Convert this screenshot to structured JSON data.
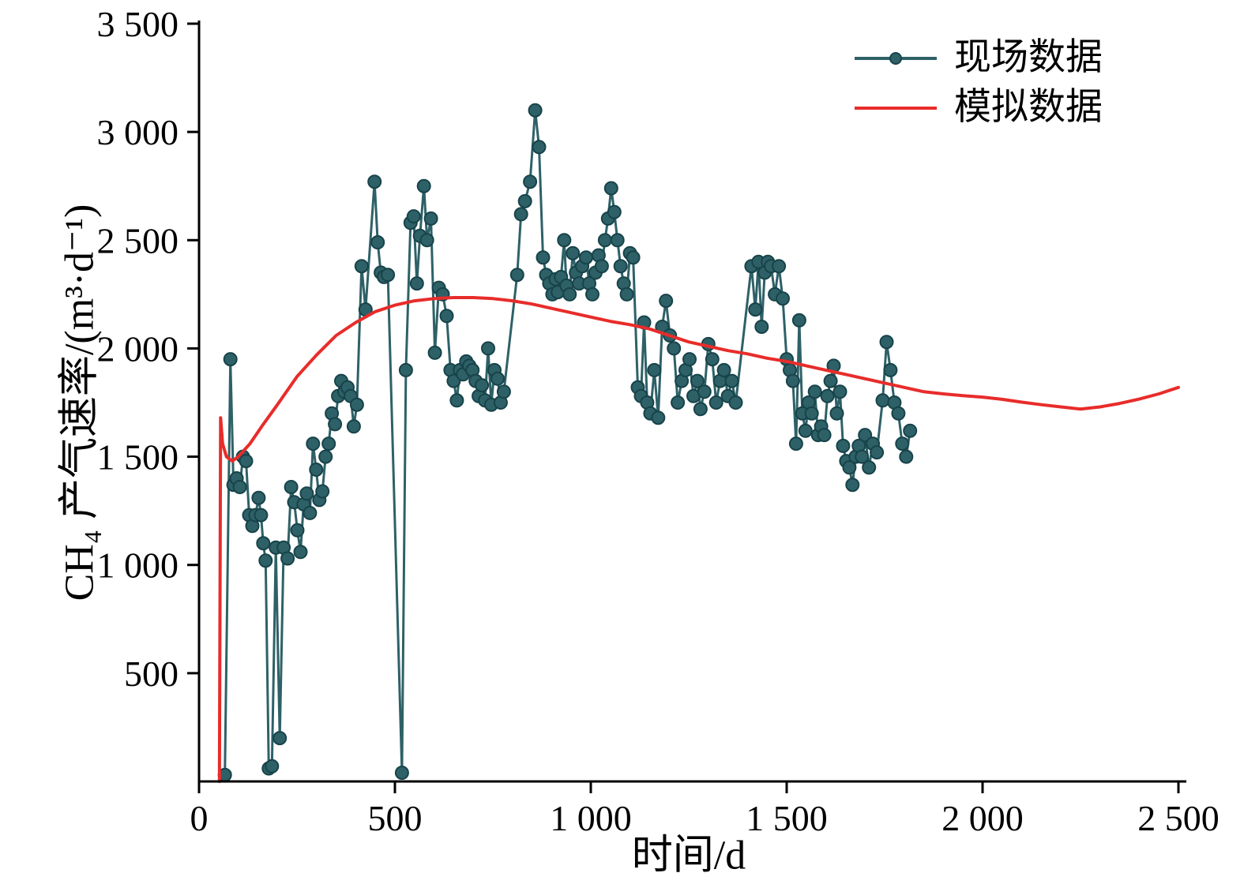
{
  "figure": {
    "background": "#ffffff",
    "axis_color": "#000000",
    "tick_label_font_px": 46
  },
  "legend": {
    "position": "top-right",
    "items": [
      {
        "name": "field",
        "label": "现场数据",
        "marker": "circle-line",
        "color": "#2e6167",
        "marker_edge": "#17434a"
      },
      {
        "name": "simulated",
        "label": "模拟数据",
        "marker": "line",
        "color": "#e82c2a"
      }
    ]
  },
  "chart_data": {
    "type": "line",
    "title": "",
    "xlabel": "时间/d",
    "ylabel": "CH₄ 产气速率/(m³·d⁻¹)",
    "xlim": [
      0,
      2500
    ],
    "ylim": [
      0,
      3500
    ],
    "grid": false,
    "x_ticks": [
      {
        "value": 0,
        "label": "0"
      },
      {
        "value": 500,
        "label": "500"
      },
      {
        "value": 1000,
        "label": "1 000"
      },
      {
        "value": 1500,
        "label": "1 500"
      },
      {
        "value": 2000,
        "label": "2 000"
      },
      {
        "value": 2500,
        "label": "2 500"
      }
    ],
    "y_ticks": [
      {
        "value": 500,
        "label": "500"
      },
      {
        "value": 1000,
        "label": "1 000"
      },
      {
        "value": 1500,
        "label": "1 500"
      },
      {
        "value": 2000,
        "label": "2 000"
      },
      {
        "value": 2500,
        "label": "2 500"
      },
      {
        "value": 3000,
        "label": "3 000"
      },
      {
        "value": 3500,
        "label": "3 500"
      }
    ],
    "series": [
      {
        "name": "现场数据",
        "style": "line+marker",
        "color": "#2e6167",
        "marker_edge": "#17434a",
        "marker_radius": 8,
        "line_width": 3,
        "points": [
          [
            66,
            30
          ],
          [
            80,
            1950
          ],
          [
            88,
            1370
          ],
          [
            96,
            1400
          ],
          [
            104,
            1360
          ],
          [
            112,
            1500
          ],
          [
            120,
            1480
          ],
          [
            128,
            1230
          ],
          [
            136,
            1180
          ],
          [
            144,
            1230
          ],
          [
            152,
            1310
          ],
          [
            158,
            1230
          ],
          [
            164,
            1100
          ],
          [
            170,
            1020
          ],
          [
            178,
            60
          ],
          [
            186,
            70
          ],
          [
            196,
            1080
          ],
          [
            206,
            200
          ],
          [
            216,
            1080
          ],
          [
            226,
            1030
          ],
          [
            235,
            1360
          ],
          [
            243,
            1290
          ],
          [
            251,
            1160
          ],
          [
            259,
            1060
          ],
          [
            267,
            1280
          ],
          [
            275,
            1330
          ],
          [
            283,
            1240
          ],
          [
            291,
            1560
          ],
          [
            299,
            1440
          ],
          [
            307,
            1300
          ],
          [
            315,
            1340
          ],
          [
            323,
            1500
          ],
          [
            331,
            1560
          ],
          [
            339,
            1700
          ],
          [
            347,
            1650
          ],
          [
            355,
            1780
          ],
          [
            363,
            1850
          ],
          [
            371,
            1800
          ],
          [
            379,
            1820
          ],
          [
            387,
            1780
          ],
          [
            395,
            1640
          ],
          [
            403,
            1740
          ],
          [
            415,
            2380
          ],
          [
            425,
            2180
          ],
          [
            448,
            2770
          ],
          [
            456,
            2490
          ],
          [
            464,
            2350
          ],
          [
            472,
            2330
          ],
          [
            482,
            2340
          ],
          [
            518,
            40
          ],
          [
            528,
            1900
          ],
          [
            540,
            2580
          ],
          [
            548,
            2610
          ],
          [
            556,
            2300
          ],
          [
            564,
            2520
          ],
          [
            574,
            2750
          ],
          [
            582,
            2500
          ],
          [
            592,
            2600
          ],
          [
            602,
            1980
          ],
          [
            612,
            2280
          ],
          [
            622,
            2250
          ],
          [
            632,
            2150
          ],
          [
            642,
            1900
          ],
          [
            650,
            1850
          ],
          [
            658,
            1760
          ],
          [
            666,
            1900
          ],
          [
            674,
            1880
          ],
          [
            682,
            1940
          ],
          [
            690,
            1920
          ],
          [
            698,
            1900
          ],
          [
            706,
            1850
          ],
          [
            714,
            1780
          ],
          [
            722,
            1830
          ],
          [
            730,
            1760
          ],
          [
            738,
            2000
          ],
          [
            746,
            1740
          ],
          [
            754,
            1900
          ],
          [
            762,
            1860
          ],
          [
            770,
            1750
          ],
          [
            778,
            1800
          ],
          [
            812,
            2340
          ],
          [
            822,
            2620
          ],
          [
            832,
            2680
          ],
          [
            845,
            2770
          ],
          [
            858,
            3100
          ],
          [
            868,
            2930
          ],
          [
            878,
            2420
          ],
          [
            886,
            2340
          ],
          [
            894,
            2300
          ],
          [
            902,
            2250
          ],
          [
            910,
            2320
          ],
          [
            916,
            2260
          ],
          [
            924,
            2330
          ],
          [
            932,
            2500
          ],
          [
            938,
            2290
          ],
          [
            946,
            2250
          ],
          [
            954,
            2440
          ],
          [
            962,
            2350
          ],
          [
            970,
            2300
          ],
          [
            978,
            2380
          ],
          [
            988,
            2420
          ],
          [
            996,
            2300
          ],
          [
            1004,
            2250
          ],
          [
            1012,
            2350
          ],
          [
            1020,
            2430
          ],
          [
            1028,
            2380
          ],
          [
            1036,
            2500
          ],
          [
            1044,
            2600
          ],
          [
            1052,
            2740
          ],
          [
            1060,
            2630
          ],
          [
            1068,
            2500
          ],
          [
            1076,
            2380
          ],
          [
            1084,
            2300
          ],
          [
            1092,
            2250
          ],
          [
            1100,
            2440
          ],
          [
            1108,
            2420
          ],
          [
            1120,
            1820
          ],
          [
            1128,
            1780
          ],
          [
            1136,
            2120
          ],
          [
            1144,
            1750
          ],
          [
            1152,
            1700
          ],
          [
            1162,
            1900
          ],
          [
            1172,
            1680
          ],
          [
            1182,
            2100
          ],
          [
            1192,
            2220
          ],
          [
            1202,
            2060
          ],
          [
            1212,
            2000
          ],
          [
            1222,
            1750
          ],
          [
            1232,
            1850
          ],
          [
            1242,
            1900
          ],
          [
            1252,
            1950
          ],
          [
            1262,
            1780
          ],
          [
            1272,
            1850
          ],
          [
            1280,
            1720
          ],
          [
            1290,
            1800
          ],
          [
            1300,
            2020
          ],
          [
            1310,
            1950
          ],
          [
            1320,
            1750
          ],
          [
            1330,
            1850
          ],
          [
            1340,
            1900
          ],
          [
            1350,
            1780
          ],
          [
            1360,
            1850
          ],
          [
            1370,
            1750
          ],
          [
            1410,
            2380
          ],
          [
            1420,
            2180
          ],
          [
            1428,
            2400
          ],
          [
            1436,
            2100
          ],
          [
            1444,
            2350
          ],
          [
            1452,
            2400
          ],
          [
            1460,
            2380
          ],
          [
            1470,
            2250
          ],
          [
            1480,
            2380
          ],
          [
            1490,
            2230
          ],
          [
            1500,
            1950
          ],
          [
            1508,
            1900
          ],
          [
            1516,
            1850
          ],
          [
            1524,
            1560
          ],
          [
            1532,
            2130
          ],
          [
            1540,
            1700
          ],
          [
            1548,
            1620
          ],
          [
            1556,
            1750
          ],
          [
            1564,
            1700
          ],
          [
            1572,
            1800
          ],
          [
            1580,
            1600
          ],
          [
            1588,
            1640
          ],
          [
            1596,
            1600
          ],
          [
            1604,
            1780
          ],
          [
            1612,
            1850
          ],
          [
            1620,
            1920
          ],
          [
            1628,
            1700
          ],
          [
            1636,
            1800
          ],
          [
            1644,
            1550
          ],
          [
            1652,
            1480
          ],
          [
            1660,
            1450
          ],
          [
            1668,
            1370
          ],
          [
            1676,
            1500
          ],
          [
            1684,
            1550
          ],
          [
            1692,
            1500
          ],
          [
            1700,
            1600
          ],
          [
            1710,
            1450
          ],
          [
            1720,
            1560
          ],
          [
            1730,
            1520
          ],
          [
            1745,
            1760
          ],
          [
            1755,
            2030
          ],
          [
            1765,
            1900
          ],
          [
            1775,
            1750
          ],
          [
            1785,
            1700
          ],
          [
            1795,
            1560
          ],
          [
            1805,
            1500
          ],
          [
            1815,
            1620
          ]
        ]
      },
      {
        "name": "模拟数据",
        "style": "line",
        "color": "#e82c2a",
        "line_width": 4,
        "points": [
          [
            52,
            0
          ],
          [
            55,
            1680
          ],
          [
            60,
            1560
          ],
          [
            70,
            1500
          ],
          [
            85,
            1480
          ],
          [
            100,
            1500
          ],
          [
            130,
            1560
          ],
          [
            160,
            1640
          ],
          [
            200,
            1740
          ],
          [
            250,
            1870
          ],
          [
            300,
            1970
          ],
          [
            350,
            2060
          ],
          [
            400,
            2120
          ],
          [
            450,
            2170
          ],
          [
            500,
            2200
          ],
          [
            550,
            2220
          ],
          [
            600,
            2230
          ],
          [
            650,
            2235
          ],
          [
            700,
            2235
          ],
          [
            750,
            2230
          ],
          [
            800,
            2220
          ],
          [
            850,
            2205
          ],
          [
            900,
            2185
          ],
          [
            950,
            2165
          ],
          [
            1000,
            2145
          ],
          [
            1050,
            2125
          ],
          [
            1100,
            2110
          ],
          [
            1150,
            2090
          ],
          [
            1200,
            2060
          ],
          [
            1250,
            2030
          ],
          [
            1300,
            2010
          ],
          [
            1350,
            1990
          ],
          [
            1400,
            1975
          ],
          [
            1450,
            1955
          ],
          [
            1500,
            1940
          ],
          [
            1550,
            1920
          ],
          [
            1600,
            1900
          ],
          [
            1650,
            1880
          ],
          [
            1700,
            1860
          ],
          [
            1750,
            1840
          ],
          [
            1800,
            1820
          ],
          [
            1850,
            1800
          ],
          [
            1900,
            1790
          ],
          [
            1950,
            1782
          ],
          [
            2000,
            1775
          ],
          [
            2050,
            1765
          ],
          [
            2100,
            1752
          ],
          [
            2150,
            1740
          ],
          [
            2200,
            1730
          ],
          [
            2250,
            1720
          ],
          [
            2300,
            1730
          ],
          [
            2350,
            1746
          ],
          [
            2400,
            1766
          ],
          [
            2450,
            1790
          ],
          [
            2500,
            1820
          ]
        ]
      }
    ]
  }
}
